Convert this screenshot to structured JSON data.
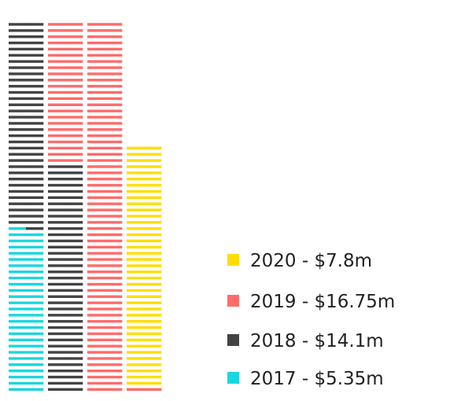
{
  "chart_data": {
    "type": "bar",
    "subtype": "stacked-unit-waffle",
    "unit_value_m": 0.1,
    "x_axis": "none",
    "y_axis": "none",
    "grid": false,
    "legend_position": "right",
    "series": [
      {
        "name": "2017",
        "label": "2017 - $5.35m",
        "value": 5.35,
        "color": "#1BD6DE"
      },
      {
        "name": "2018",
        "label": "2018 - $14.1m",
        "value": 14.1,
        "color": "#434343"
      },
      {
        "name": "2019",
        "label": "2019 - $16.75m",
        "value": 16.75,
        "color": "#FF6B6B"
      },
      {
        "name": "2020",
        "label": "2020 - $7.8m",
        "value": 7.8,
        "color": "#FFDD00"
      }
    ],
    "legend_order": [
      "2020",
      "2019",
      "2018",
      "2017"
    ]
  }
}
